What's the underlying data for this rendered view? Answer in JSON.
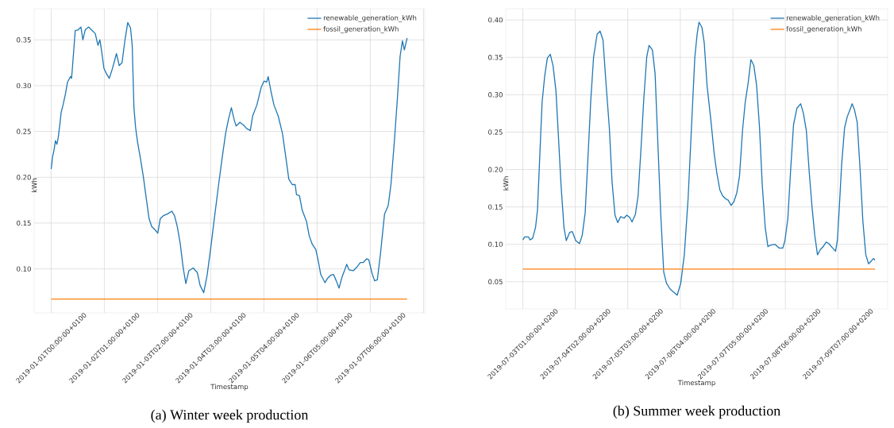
{
  "chart_data": [
    {
      "type": "line",
      "xlabel": "Timestamp",
      "ylabel": "kWh",
      "annotations": [
        "(a) Winter week production"
      ],
      "grid": true,
      "legend": "top right",
      "xlim": [
        "2018-12-31T16:00",
        "2019-01-08T07:36"
      ],
      "ylim": [
        0.052,
        0.384
      ],
      "xticks": [
        {
          "value": "2019-01-01T00:00",
          "label": "2019-01-01T00:00:00+0100"
        },
        {
          "value": "2019-01-02T01:00",
          "label": "2019-01-02T01:00:00+0100"
        },
        {
          "value": "2019-01-03T02:00",
          "label": "2019-01-03T02:00:00+0100"
        },
        {
          "value": "2019-01-04T03:00",
          "label": "2019-01-04T03:00:00+0100"
        },
        {
          "value": "2019-01-05T04:00",
          "label": "2019-01-05T04:00:00+0100"
        },
        {
          "value": "2019-01-06T05:00",
          "label": "2019-01-06T05:00:00+0100"
        },
        {
          "value": "2019-01-07T06:00",
          "label": "2019-01-07T06:00:00+0100"
        },
        {
          "value": "2019-01-08T07:00",
          "label": null
        }
      ],
      "yticks": [
        {
          "value": 0.1,
          "label": "0.10"
        },
        0.15,
        {
          "value": 0.2,
          "label": "0.20"
        },
        0.25,
        {
          "value": 0.3,
          "label": "0.30"
        },
        0.35
      ],
      "series": [
        {
          "name": "renewable_generation_kWh",
          "color": "#1f77b4",
          "x": [
            "2019-01-01T00:00",
            "2019-01-01T00:42",
            "2019-01-01T01:18",
            "2019-01-01T02:00",
            "2019-01-01T02:42",
            "2019-01-01T03:18",
            "2019-01-01T04:00",
            "2019-01-01T04:42",
            "2019-01-01T05:36",
            "2019-01-01T06:42",
            "2019-01-01T07:42",
            "2019-01-01T09:06",
            "2019-01-01T09:36",
            "2019-01-01T10:24",
            "2019-01-01T11:18",
            "2019-01-01T12:42",
            "2019-01-01T14:00",
            "2019-01-01T14:54",
            "2019-01-01T16:00",
            "2019-01-01T17:36",
            "2019-01-01T18:54",
            "2019-01-01T20:42",
            "2019-01-01T22:00",
            "2019-01-01T22:54",
            "2019-01-01T23:42",
            "2019-01-02T00:48",
            "2019-01-02T02:00",
            "2019-01-02T03:18",
            "2019-01-02T04:42",
            "2019-01-02T06:42",
            "2019-01-02T08:00",
            "2019-01-02T09:18",
            "2019-01-02T10:42",
            "2019-01-02T12:00",
            "2019-01-02T13:18",
            "2019-01-02T14:06",
            "2019-01-02T14:54",
            "2019-01-02T15:42",
            "2019-01-02T16:42",
            "2019-01-02T18:00",
            "2019-01-02T19:18",
            "2019-01-02T20:42",
            "2019-01-02T22:00",
            "2019-01-02T23:18",
            "2019-01-03T00:42",
            "2019-01-03T02:06",
            "2019-01-03T03:18",
            "2019-01-03T04:42",
            "2019-01-03T06:42",
            "2019-01-03T08:42",
            "2019-01-03T10:00",
            "2019-01-03T11:18",
            "2019-01-03T12:42",
            "2019-01-03T14:00",
            "2019-01-03T15:18",
            "2019-01-03T16:42",
            "2019-01-03T18:42",
            "2019-01-03T20:42",
            "2019-01-03T22:00",
            "2019-01-03T23:42",
            "2019-01-04T01:18",
            "2019-01-04T02:54",
            "2019-01-04T04:42",
            "2019-01-04T06:42",
            "2019-01-04T08:18",
            "2019-01-04T10:00",
            "2019-01-04T11:18",
            "2019-01-04T12:42",
            "2019-01-04T14:00",
            "2019-01-04T14:54",
            "2019-01-04T16:42",
            "2019-01-04T18:24",
            "2019-01-04T20:00",
            "2019-01-04T21:36",
            "2019-01-04T22:42",
            "2019-01-05T00:42",
            "2019-01-05T02:42",
            "2019-01-05T04:00",
            "2019-01-05T05:18",
            "2019-01-05T06:00",
            "2019-01-05T07:18",
            "2019-01-05T08:42",
            "2019-01-05T10:42",
            "2019-01-05T12:42",
            "2019-01-05T14:24",
            "2019-01-05T15:42",
            "2019-01-05T17:18",
            "2019-01-05T18:42",
            "2019-01-05T19:18",
            "2019-01-05T20:42",
            "2019-01-05T22:00",
            "2019-01-06T00:00",
            "2019-01-06T01:18",
            "2019-01-06T02:42",
            "2019-01-06T04:24",
            "2019-01-06T05:36",
            "2019-01-06T06:42",
            "2019-01-06T08:42",
            "2019-01-06T10:00",
            "2019-01-06T11:18",
            "2019-01-06T12:42",
            "2019-01-06T14:00",
            "2019-01-06T15:18",
            "2019-01-06T16:42",
            "2019-01-06T18:00",
            "2019-01-06T18:54",
            "2019-01-06T20:00",
            "2019-01-06T22:00",
            "2019-01-06T23:42",
            "2019-01-07T01:18",
            "2019-01-07T02:42",
            "2019-01-07T04:18",
            "2019-01-07T05:18",
            "2019-01-07T06:42",
            "2019-01-07T08:00",
            "2019-01-07T09:18",
            "2019-01-07T10:42",
            "2019-01-07T12:42",
            "2019-01-07T14:24",
            "2019-01-07T15:42",
            "2019-01-07T17:18",
            "2019-01-07T18:42",
            "2019-01-07T20:00",
            "2019-01-07T21:06",
            "2019-01-07T22:00",
            "2019-01-07T23:18"
          ],
          "values": [
            0.209,
            0.223,
            0.229,
            0.24,
            0.236,
            0.243,
            0.256,
            0.271,
            0.279,
            0.291,
            0.304,
            0.31,
            0.308,
            0.332,
            0.36,
            0.361,
            0.364,
            0.35,
            0.361,
            0.364,
            0.361,
            0.357,
            0.344,
            0.35,
            0.338,
            0.319,
            0.313,
            0.308,
            0.318,
            0.335,
            0.322,
            0.325,
            0.35,
            0.369,
            0.363,
            0.344,
            0.276,
            0.254,
            0.237,
            0.22,
            0.201,
            0.177,
            0.155,
            0.146,
            0.143,
            0.139,
            0.155,
            0.158,
            0.16,
            0.163,
            0.158,
            0.146,
            0.127,
            0.102,
            0.084,
            0.098,
            0.101,
            0.096,
            0.082,
            0.074,
            0.093,
            0.121,
            0.155,
            0.192,
            0.22,
            0.248,
            0.263,
            0.276,
            0.263,
            0.256,
            0.26,
            0.257,
            0.253,
            0.251,
            0.267,
            0.279,
            0.298,
            0.305,
            0.304,
            0.31,
            0.294,
            0.279,
            0.267,
            0.248,
            0.22,
            0.198,
            0.192,
            0.192,
            0.181,
            0.18,
            0.164,
            0.152,
            0.136,
            0.127,
            0.121,
            0.108,
            0.094,
            0.085,
            0.09,
            0.093,
            0.094,
            0.087,
            0.079,
            0.091,
            0.099,
            0.105,
            0.099,
            0.098,
            0.102,
            0.107,
            0.107,
            0.111,
            0.11,
            0.096,
            0.087,
            0.088,
            0.115,
            0.16,
            0.169,
            0.192,
            0.239,
            0.285,
            0.332,
            0.349,
            0.339,
            0.352
          ]
        },
        {
          "name": "fossil_generation_kWh",
          "color": "#ff7f0e",
          "x": [
            "2019-01-01T00:00",
            "2019-01-07T23:18"
          ],
          "values": [
            0.067,
            0.067
          ]
        }
      ]
    },
    {
      "type": "line",
      "xlabel": "Timestamp",
      "ylabel": "kWh",
      "annotations": [
        "(b) Summer week production"
      ],
      "grid": true,
      "legend": "top right",
      "xlim": [
        "2019-07-02T16:54",
        "2019-07-10T06:42"
      ],
      "ylim": [
        0.0137,
        0.415
      ],
      "xticks": [
        {
          "value": "2019-07-03T01:00",
          "label": "2019-07-03T01:00:00+0200"
        },
        {
          "value": "2019-07-04T02:00",
          "label": "2019-07-04T02:00:00+0200"
        },
        {
          "value": "2019-07-05T03:00",
          "label": "2019-07-05T03:00:00+0200"
        },
        {
          "value": "2019-07-06T04:00",
          "label": "2019-07-06T04:00:00+0200"
        },
        {
          "value": "2019-07-07T05:00",
          "label": "2019-07-07T05:00:00+0200"
        },
        {
          "value": "2019-07-08T06:00",
          "label": "2019-07-08T06:00:00+0200"
        },
        {
          "value": "2019-07-09T07:00",
          "label": "2019-07-09T07:00:00+0200"
        }
      ],
      "yticks": [
        0.05,
        {
          "value": 0.1,
          "label": "0.10"
        },
        0.15,
        {
          "value": 0.2,
          "label": "0.20"
        },
        0.25,
        {
          "value": 0.3,
          "label": "0.30"
        },
        0.35,
        {
          "value": 0.4,
          "label": "0.40"
        }
      ],
      "series": [
        {
          "name": "renewable_generation_kWh",
          "color": "#1f77b4",
          "x": [
            "2019-07-03T01:00",
            "2019-07-03T01:54",
            "2019-07-03T03:42",
            "2019-07-03T04:24",
            "2019-07-03T05:42",
            "2019-07-03T07:06",
            "2019-07-03T08:00",
            "2019-07-03T09:06",
            "2019-07-03T10:12",
            "2019-07-03T11:24",
            "2019-07-03T12:42",
            "2019-07-03T14:06",
            "2019-07-03T15:24",
            "2019-07-03T16:48",
            "2019-07-03T17:54",
            "2019-07-03T19:12",
            "2019-07-03T20:36",
            "2019-07-03T21:42",
            "2019-07-03T23:18",
            "2019-07-04T00:36",
            "2019-07-04T02:12",
            "2019-07-04T04:00",
            "2019-07-04T05:18",
            "2019-07-04T06:42",
            "2019-07-04T08:00",
            "2019-07-04T09:24",
            "2019-07-04T10:42",
            "2019-07-04T12:24",
            "2019-07-04T13:48",
            "2019-07-04T15:12",
            "2019-07-04T16:30",
            "2019-07-04T18:12",
            "2019-07-04T19:30",
            "2019-07-04T20:54",
            "2019-07-04T22:12",
            "2019-07-04T23:36",
            "2019-07-05T01:12",
            "2019-07-05T02:30",
            "2019-07-05T03:54",
            "2019-07-05T05:00",
            "2019-07-05T06:36",
            "2019-07-05T07:54",
            "2019-07-05T09:18",
            "2019-07-05T10:36",
            "2019-07-05T12:00",
            "2019-07-05T13:06",
            "2019-07-05T14:42",
            "2019-07-05T16:00",
            "2019-07-05T17:24",
            "2019-07-05T18:42",
            "2019-07-05T20:06",
            "2019-07-05T21:24",
            "2019-07-05T23:12",
            "2019-07-06T00:54",
            "2019-07-06T02:30",
            "2019-07-06T04:12",
            "2019-07-06T05:54",
            "2019-07-06T07:42",
            "2019-07-06T09:18",
            "2019-07-06T10:54",
            "2019-07-06T12:00",
            "2019-07-06T12:54",
            "2019-07-06T14:18",
            "2019-07-06T15:24",
            "2019-07-06T16:42",
            "2019-07-06T18:30",
            "2019-07-06T20:06",
            "2019-07-06T21:24",
            "2019-07-06T22:48",
            "2019-07-07T00:06",
            "2019-07-07T01:30",
            "2019-07-07T02:48",
            "2019-07-07T04:12",
            "2019-07-07T05:30",
            "2019-07-07T06:54",
            "2019-07-07T08:12",
            "2019-07-07T09:36",
            "2019-07-07T10:54",
            "2019-07-07T12:18",
            "2019-07-07T13:36",
            "2019-07-07T15:00",
            "2019-07-07T16:18",
            "2019-07-07T17:42",
            "2019-07-07T19:00",
            "2019-07-07T20:24",
            "2019-07-07T21:42",
            "2019-07-07T23:06",
            "2019-07-08T01:06",
            "2019-07-08T03:06",
            "2019-07-08T04:48",
            "2019-07-08T05:48",
            "2019-07-08T07:12",
            "2019-07-08T08:30",
            "2019-07-08T09:54",
            "2019-07-08T11:30",
            "2019-07-08T13:18",
            "2019-07-08T14:36",
            "2019-07-08T16:00",
            "2019-07-08T17:18",
            "2019-07-08T18:42",
            "2019-07-08T20:00",
            "2019-07-08T21:18",
            "2019-07-08T22:42",
            "2019-07-09T00:00",
            "2019-07-09T01:24",
            "2019-07-09T02:42",
            "2019-07-09T04:30",
            "2019-07-09T05:54",
            "2019-07-09T06:48",
            "2019-07-09T07:42",
            "2019-07-09T08:48",
            "2019-07-09T10:12",
            "2019-07-09T11:30",
            "2019-07-09T12:54",
            "2019-07-09T13:48",
            "2019-07-09T14:54",
            "2019-07-09T16:12",
            "2019-07-09T17:36",
            "2019-07-09T18:54",
            "2019-07-09T20:18",
            "2019-07-09T21:36",
            "2019-07-09T23:00",
            "2019-07-09T23:54",
            "2019-07-10T00:42"
          ],
          "values": [
            0.106,
            0.11,
            0.11,
            0.106,
            0.108,
            0.123,
            0.146,
            0.218,
            0.29,
            0.324,
            0.349,
            0.354,
            0.339,
            0.305,
            0.248,
            0.18,
            0.123,
            0.105,
            0.116,
            0.117,
            0.105,
            0.101,
            0.112,
            0.142,
            0.214,
            0.294,
            0.35,
            0.381,
            0.385,
            0.373,
            0.32,
            0.256,
            0.184,
            0.139,
            0.129,
            0.137,
            0.135,
            0.139,
            0.136,
            0.13,
            0.14,
            0.165,
            0.229,
            0.294,
            0.35,
            0.366,
            0.36,
            0.328,
            0.229,
            0.139,
            0.063,
            0.048,
            0.04,
            0.036,
            0.032,
            0.048,
            0.086,
            0.161,
            0.256,
            0.35,
            0.381,
            0.397,
            0.39,
            0.369,
            0.313,
            0.267,
            0.222,
            0.195,
            0.173,
            0.165,
            0.161,
            0.159,
            0.152,
            0.157,
            0.169,
            0.192,
            0.252,
            0.29,
            0.316,
            0.347,
            0.339,
            0.313,
            0.256,
            0.18,
            0.123,
            0.097,
            0.099,
            0.1,
            0.095,
            0.095,
            0.105,
            0.135,
            0.199,
            0.26,
            0.282,
            0.288,
            0.275,
            0.252,
            0.199,
            0.15,
            0.112,
            0.086,
            0.093,
            0.097,
            0.103,
            0.101,
            0.095,
            0.091,
            0.106,
            0.15,
            0.207,
            0.256,
            0.271,
            0.281,
            0.288,
            0.28,
            0.263,
            0.199,
            0.131,
            0.086,
            0.074,
            0.078,
            0.081,
            0.079
          ]
        },
        {
          "name": "fossil_generation_kWh",
          "color": "#ff7f0e",
          "x": [
            "2019-07-03T01:00",
            "2019-07-10T00:42"
          ],
          "values": [
            0.067,
            0.067
          ]
        }
      ]
    }
  ]
}
